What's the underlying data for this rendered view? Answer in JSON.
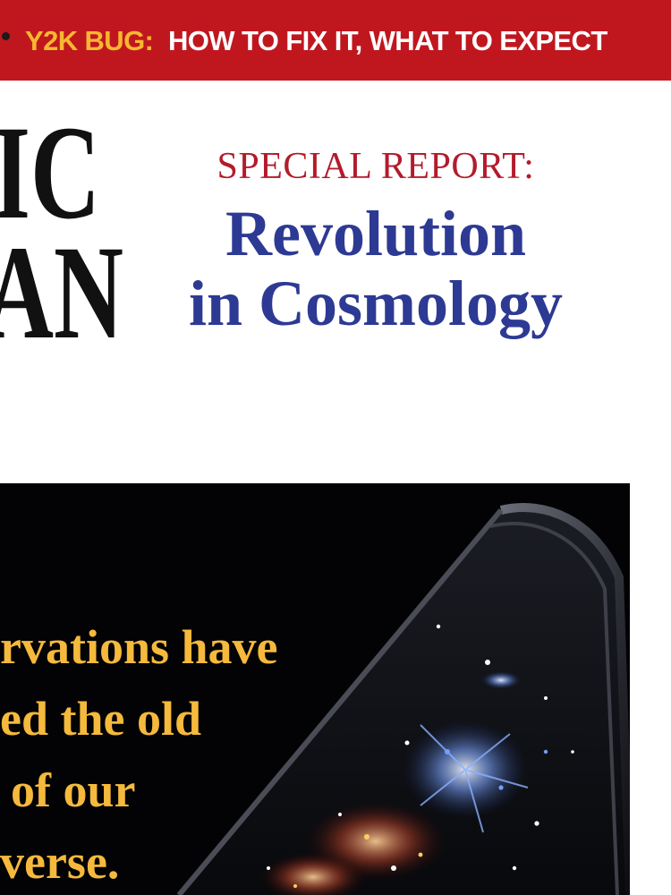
{
  "banner": {
    "lead": "Y2K BUG:",
    "rest": "HOW TO FIX IT, WHAT TO EXPECT",
    "background": "#c0171f",
    "lead_color": "#f7b731",
    "rest_color": "#ffffff"
  },
  "masthead": {
    "line1": "IC",
    "line2": "AN",
    "color": "#111111"
  },
  "report": {
    "kicker": "SPECIAL REPORT:",
    "headline_line1": "Revolution",
    "headline_line2": "in Cosmology",
    "kicker_color": "#b31b2c",
    "headline_color": "#2d3a94"
  },
  "cover_blurb": {
    "line1": "rvations have",
    "line2": "ed the old",
    "line3": "of our",
    "line4": "verse.",
    "color": "#f5b93c"
  },
  "artwork": {
    "icon": "universe-cone-illustration",
    "panel_color": "#030305"
  }
}
